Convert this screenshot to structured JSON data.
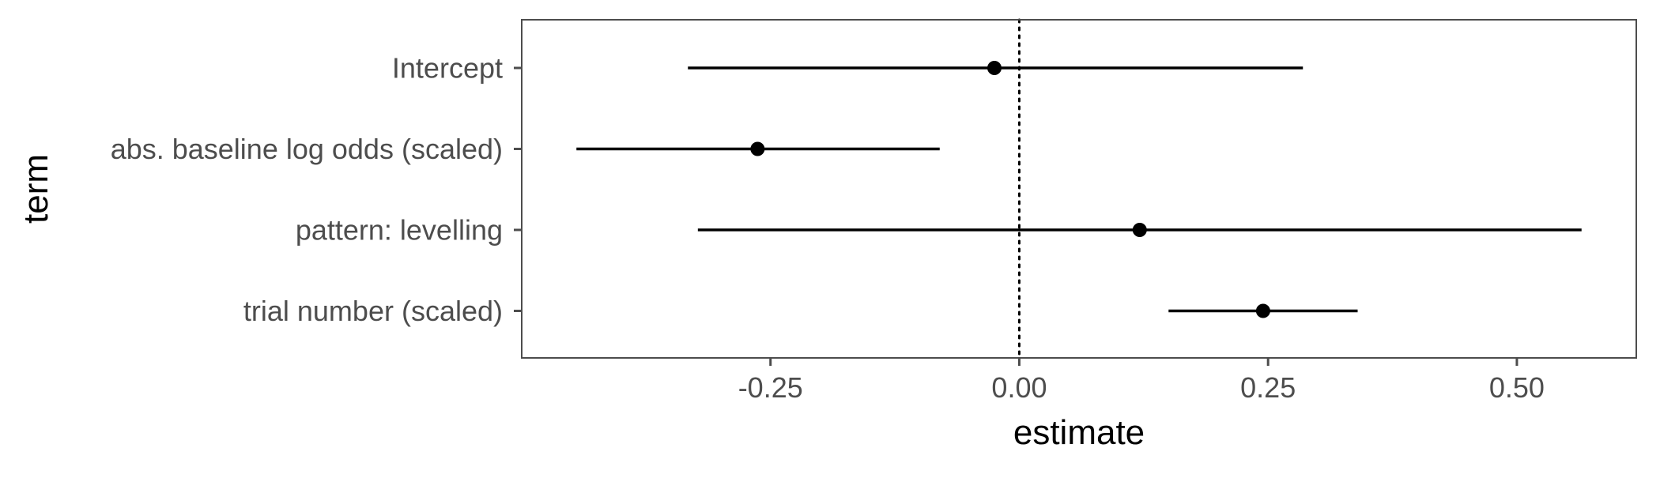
{
  "chart_data": {
    "type": "scatter",
    "subtype": "coefficient-plot",
    "xlabel": "estimate",
    "ylabel": "term",
    "xlim": [
      -0.5,
      0.62
    ],
    "xticks": [
      -0.25,
      0.0,
      0.25,
      0.5
    ],
    "xtick_labels": [
      "-0.25",
      "0.00",
      "0.25",
      "0.50"
    ],
    "reference_line": {
      "x": 0,
      "style": "dotted"
    },
    "grid": false,
    "legend": "none",
    "terms": [
      {
        "label": "Intercept",
        "estimate": -0.025,
        "low": -0.333,
        "high": 0.285
      },
      {
        "label": "abs. baseline log odds (scaled)",
        "estimate": -0.263,
        "low": -0.445,
        "high": -0.08
      },
      {
        "label": "pattern: levelling",
        "estimate": 0.121,
        "low": -0.323,
        "high": 0.565
      },
      {
        "label": "trial number (scaled)",
        "estimate": 0.245,
        "low": 0.15,
        "high": 0.34
      }
    ],
    "colors": {
      "point": "#000000",
      "interval": "#000000",
      "panel_border": "#4d4d4d",
      "tick_text": "#4d4d4d"
    }
  }
}
